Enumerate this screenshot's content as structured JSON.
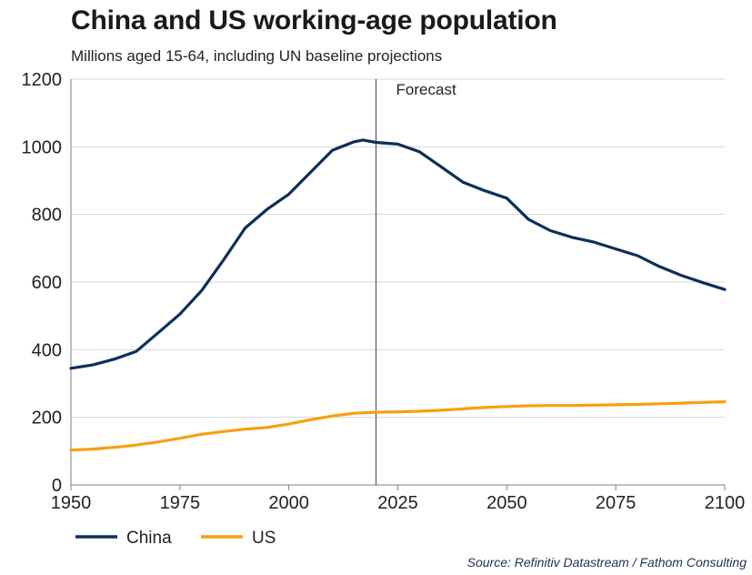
{
  "title": "China and US working-age population",
  "subtitle": "Millions aged 15-64, including UN baseline projections",
  "source": "Source: Refinitiv Datastream / Fathom Consulting",
  "colors": {
    "china": "#0e2e5a",
    "us": "#f5a10f",
    "grid": "#d6d6d6",
    "axis": "#7f7f7f"
  },
  "chart_data": {
    "type": "line",
    "title": "China and US working-age population",
    "xlim": [
      1950,
      2100
    ],
    "ylim": [
      0,
      1200
    ],
    "x_ticks": [
      1950,
      1975,
      2000,
      2025,
      2050,
      2075,
      2100
    ],
    "y_ticks": [
      0,
      200,
      400,
      600,
      800,
      1000,
      1200
    ],
    "grid": true,
    "legend": "bottom-left",
    "annotations": [
      {
        "text": "Forecast",
        "x": 2020
      }
    ],
    "series": [
      {
        "name": "China",
        "color": "#0e2e5a",
        "x": [
          1950,
          1955,
          1960,
          1965,
          1970,
          1975,
          1980,
          1985,
          1990,
          1995,
          2000,
          2005,
          2010,
          2015,
          2017,
          2020,
          2025,
          2030,
          2035,
          2040,
          2045,
          2050,
          2055,
          2060,
          2065,
          2070,
          2075,
          2080,
          2085,
          2090,
          2095,
          2100
        ],
        "y": [
          345,
          355,
          372,
          395,
          450,
          505,
          575,
          665,
          760,
          815,
          860,
          925,
          990,
          1015,
          1020,
          1013,
          1008,
          985,
          940,
          895,
          870,
          848,
          785,
          752,
          732,
          718,
          698,
          678,
          646,
          620,
          598,
          578
        ]
      },
      {
        "name": "US",
        "color": "#f5a10f",
        "x": [
          1950,
          1955,
          1960,
          1965,
          1970,
          1975,
          1980,
          1985,
          1990,
          1995,
          2000,
          2005,
          2010,
          2015,
          2020,
          2025,
          2030,
          2035,
          2040,
          2045,
          2050,
          2055,
          2060,
          2065,
          2070,
          2075,
          2080,
          2085,
          2090,
          2095,
          2100
        ],
        "y": [
          103,
          106,
          111,
          118,
          127,
          138,
          150,
          158,
          165,
          170,
          180,
          193,
          204,
          212,
          215,
          216,
          218,
          221,
          225,
          229,
          232,
          234,
          235,
          235,
          236,
          237,
          238,
          240,
          242,
          244,
          246
        ]
      }
    ]
  }
}
